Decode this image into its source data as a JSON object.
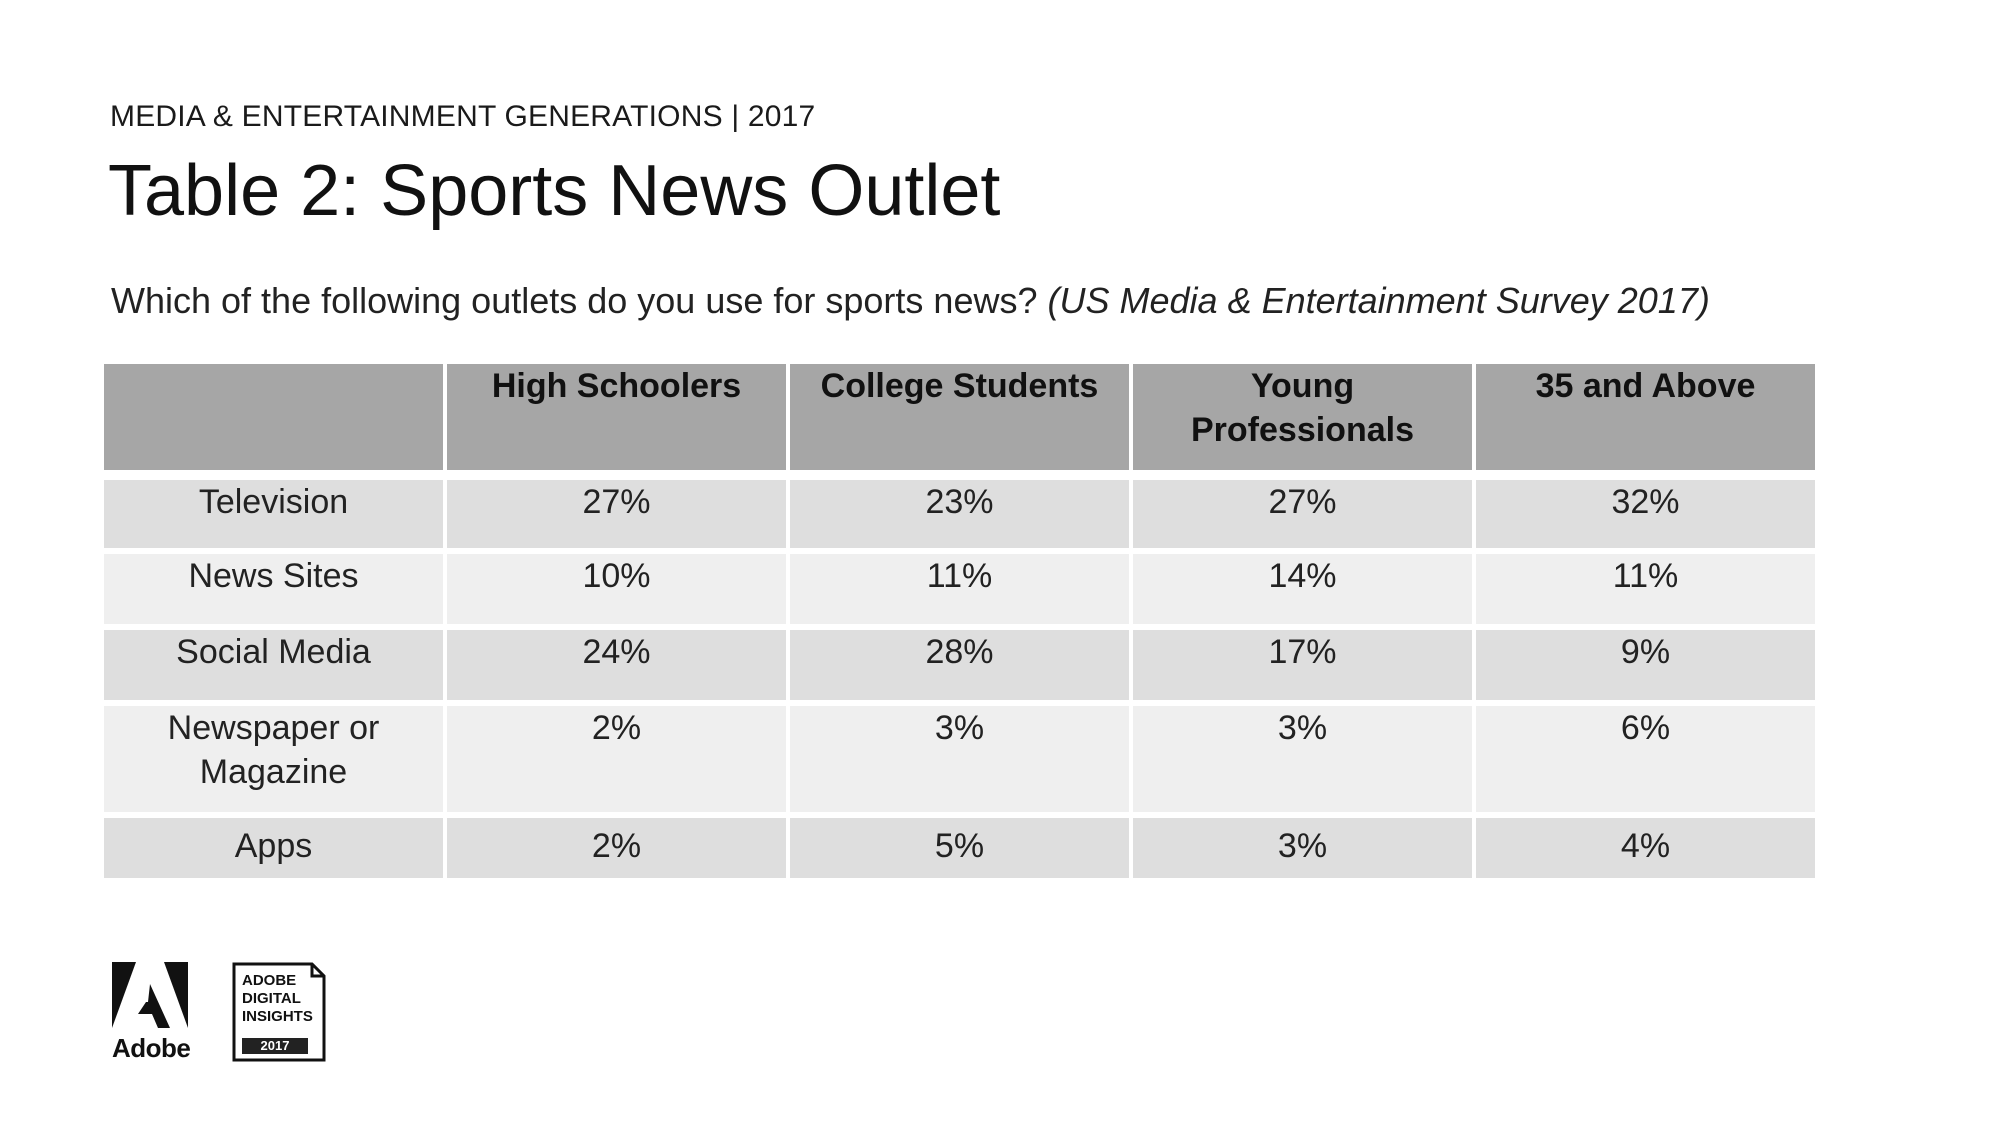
{
  "header": {
    "eyebrow": "MEDIA & ENTERTAINMENT GENERATIONS | 2017",
    "title": "Table 2: Sports News Outlet",
    "question": "Which of the following outlets do you use for sports news?",
    "source": "(US Media & Entertainment Survey 2017)"
  },
  "table": {
    "columns": [
      {
        "line1": "High Schoolers",
        "line2": ""
      },
      {
        "line1": "College Students",
        "line2": ""
      },
      {
        "line1": "Young",
        "line2": "Professionals"
      },
      {
        "line1": "35 and Above",
        "line2": ""
      }
    ],
    "rows": [
      {
        "label1": "Television",
        "label2": "",
        "values": [
          "27%",
          "23%",
          "27%",
          "32%"
        ]
      },
      {
        "label1": "News Sites",
        "label2": "",
        "values": [
          "10%",
          "11%",
          "14%",
          "11%"
        ]
      },
      {
        "label1": "Social Media",
        "label2": "",
        "values": [
          "24%",
          "28%",
          "17%",
          "9%"
        ]
      },
      {
        "label1": "Newspaper or",
        "label2": "Magazine",
        "values": [
          "2%",
          "3%",
          "3%",
          "6%"
        ]
      },
      {
        "label1": "Apps",
        "label2": "",
        "values": [
          "2%",
          "5%",
          "3%",
          "4%"
        ]
      }
    ]
  },
  "footer": {
    "adobe_wordmark": "Adobe",
    "badge_lines": [
      "ADOBE",
      "DIGITAL",
      "INSIGHTS"
    ],
    "badge_year": "2017"
  },
  "colors": {
    "header_bg": "#a6a6a6",
    "row_dark": "#dedede",
    "row_light": "#efefef"
  },
  "icons": {
    "logo": "adobe-logo-icon",
    "badge": "adobe-digital-insights-badge-icon"
  }
}
